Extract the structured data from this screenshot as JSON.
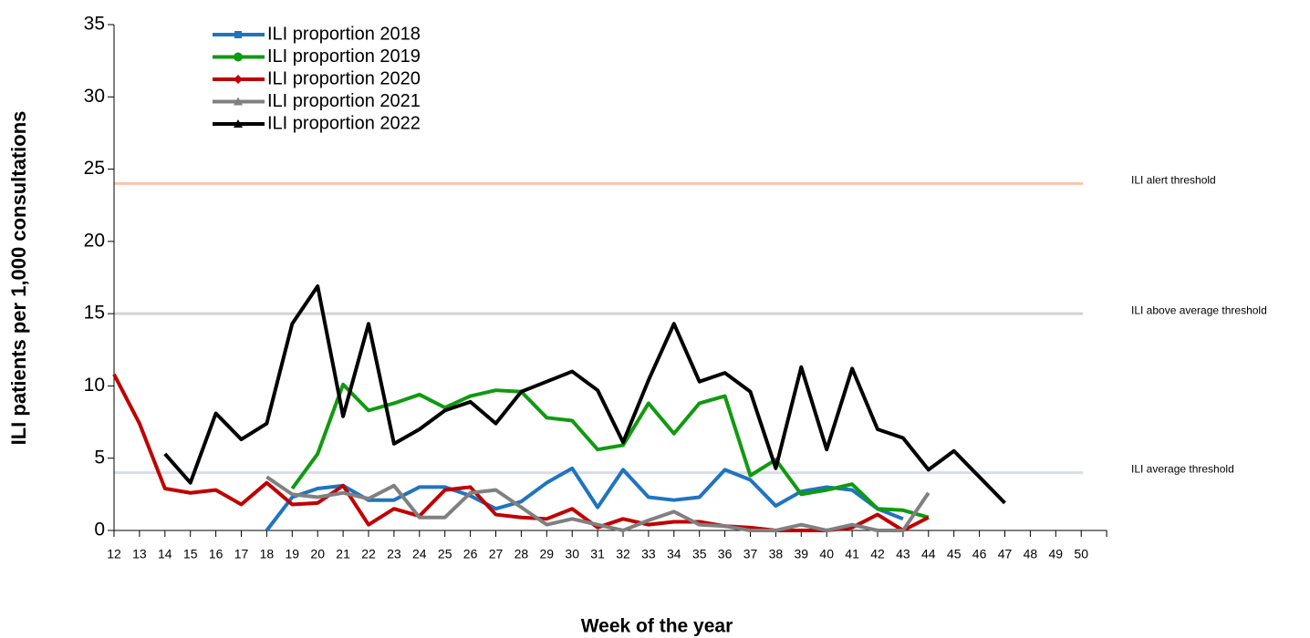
{
  "chart_data": {
    "type": "line",
    "y_label": "ILI patients per 1,000 consultations",
    "x_label": "Week of the year",
    "categories": [
      12,
      13,
      14,
      15,
      16,
      17,
      18,
      19,
      20,
      21,
      22,
      23,
      24,
      25,
      26,
      27,
      28,
      29,
      30,
      31,
      32,
      33,
      34,
      35,
      36,
      37,
      38,
      39,
      40,
      41,
      42,
      43,
      44,
      45,
      46,
      47,
      48,
      49,
      50
    ],
    "ylim": [
      0,
      35
    ],
    "yticks": [
      0,
      5,
      10,
      15,
      20,
      25,
      30,
      35
    ],
    "thresholds": [
      {
        "label": "ILI alert threshold",
        "value": 24,
        "color": "#f9c4ad"
      },
      {
        "label": "ILI above average threshold",
        "value": 15,
        "color": "#d3d3d3"
      },
      {
        "label": "ILI average threshold",
        "value": 4,
        "color": "#d6dcee"
      }
    ],
    "series": [
      {
        "name": "ILI proportion 2018",
        "color": "#1f74bf",
        "marker": "square",
        "values": [
          null,
          null,
          null,
          null,
          null,
          null,
          0,
          2.3,
          2.9,
          3.1,
          2.1,
          2.1,
          3.0,
          3.0,
          2.4,
          1.5,
          2.0,
          3.3,
          4.3,
          1.6,
          4.2,
          2.3,
          2.1,
          2.3,
          4.2,
          3.5,
          1.7,
          2.7,
          3.0,
          2.8,
          1.5,
          0.8,
          null,
          null,
          null,
          null,
          null,
          null,
          null
        ]
      },
      {
        "name": "ILI proportion 2019",
        "color": "#109a10",
        "marker": "circle",
        "values": [
          null,
          null,
          null,
          null,
          null,
          null,
          null,
          2.9,
          5.3,
          10.1,
          8.3,
          8.8,
          9.4,
          8.5,
          9.3,
          9.7,
          9.6,
          7.8,
          7.6,
          5.6,
          5.9,
          8.8,
          6.7,
          8.8,
          9.3,
          3.8,
          4.9,
          2.5,
          2.8,
          3.2,
          1.5,
          1.4,
          0.9,
          null,
          null,
          null,
          null,
          null,
          null
        ]
      },
      {
        "name": "ILI proportion 2020",
        "color": "#c00000",
        "marker": "diamond",
        "values": [
          10.8,
          7.4,
          2.9,
          2.6,
          2.8,
          1.8,
          3.3,
          1.8,
          1.9,
          3.1,
          0.4,
          1.5,
          1.0,
          2.8,
          3.0,
          1.1,
          0.9,
          0.8,
          1.5,
          0.2,
          0.8,
          0.4,
          0.6,
          0.6,
          0.3,
          0.2,
          0,
          0,
          0,
          0.2,
          1.1,
          0,
          0.9,
          null,
          null,
          null,
          null,
          null,
          null
        ]
      },
      {
        "name": "ILI proportion 2021",
        "color": "#808080",
        "marker": "triangle",
        "values": [
          null,
          null,
          null,
          null,
          null,
          null,
          3.7,
          2.5,
          2.3,
          2.6,
          2.2,
          3.1,
          0.9,
          0.9,
          2.6,
          2.8,
          1.6,
          0.4,
          0.8,
          0.4,
          0,
          0.7,
          1.3,
          0.4,
          0.3,
          0,
          0,
          0.4,
          0,
          0.4,
          0,
          0,
          2.6,
          null,
          null,
          null,
          null,
          null,
          null
        ]
      },
      {
        "name": "ILI proportion 2022",
        "color": "#000000",
        "marker": "triangle",
        "values": [
          null,
          null,
          5.3,
          3.3,
          8.1,
          6.3,
          7.4,
          14.3,
          16.9,
          7.9,
          14.3,
          6.0,
          7.0,
          8.3,
          8.9,
          7.4,
          9.6,
          10.3,
          11.0,
          9.7,
          6.1,
          10.4,
          14.3,
          10.3,
          10.9,
          9.6,
          4.3,
          11.3,
          5.6,
          11.2,
          7.0,
          6.4,
          4.2,
          5.5,
          3.7,
          1.9,
          null,
          null,
          null
        ]
      }
    ]
  }
}
